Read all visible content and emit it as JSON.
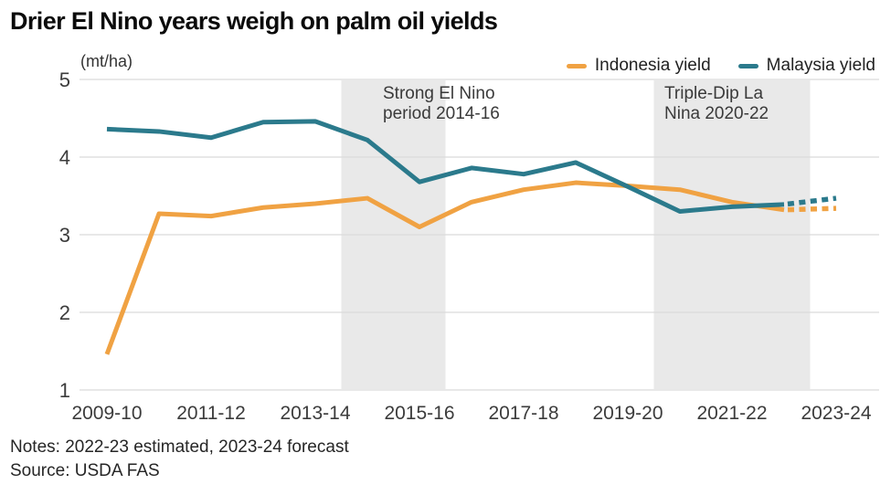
{
  "chart": {
    "title": "Drier El Nino years weigh on palm oil yields",
    "unit_label": "(mt/ha)",
    "notes_line": "Notes: 2022-23 estimated, 2023-24 forecast",
    "source_line": "Source:  USDA FAS",
    "colors": {
      "indonesia": "#F0A243",
      "malaysia": "#2B7A8C",
      "band": "#E9E9E9",
      "grid": "#DBDBDB",
      "tick_text": "#3C3C3C",
      "annotation_text": "#3A3A3A"
    }
  },
  "chart_data": {
    "type": "line",
    "x": [
      "2009-10",
      "2010-11",
      "2011-12",
      "2012-13",
      "2013-14",
      "2014-15",
      "2015-16",
      "2016-17",
      "2017-18",
      "2018-19",
      "2019-20",
      "2020-21",
      "2021-22",
      "2022-23",
      "2023-24"
    ],
    "x_tick_labels": [
      "2009-10",
      "2011-12",
      "2013-14",
      "2015-16",
      "2017-18",
      "2019-20",
      "2021-22",
      "2023-24"
    ],
    "ylim": [
      1,
      5
    ],
    "yticks": [
      1,
      2,
      3,
      4,
      5
    ],
    "ylabel": "(mt/ha)",
    "grid": "horizontal",
    "legend_position": "top-right",
    "series": [
      {
        "name": "Indonesia yield",
        "color": "#F0A243",
        "values": [
          1.46,
          3.27,
          3.24,
          3.35,
          3.4,
          3.47,
          3.1,
          3.42,
          3.58,
          3.67,
          3.63,
          3.58,
          3.42,
          3.32,
          3.34
        ],
        "dashed_from_index": 13
      },
      {
        "name": "Malaysia yield",
        "color": "#2B7A8C",
        "values": [
          4.36,
          4.33,
          4.25,
          4.45,
          4.46,
          4.22,
          3.68,
          3.86,
          3.78,
          3.93,
          3.62,
          3.3,
          3.36,
          3.39,
          3.47
        ],
        "dashed_from_index": 13
      }
    ],
    "bands": [
      {
        "label_lines": [
          "Strong El Nino",
          "period 2014-16"
        ],
        "from_index": 4.5,
        "to_index": 6.5
      },
      {
        "label_lines": [
          "Triple-Dip La",
          "Nina 2020-22"
        ],
        "from_index": 10.5,
        "to_index": 13.5
      }
    ]
  }
}
